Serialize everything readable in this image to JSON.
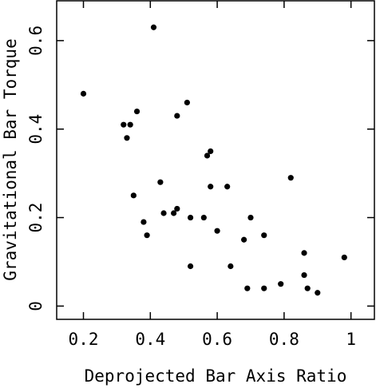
{
  "chart_data": {
    "type": "scatter",
    "title": "",
    "xlabel": "Deprojected Bar Axis Ratio",
    "ylabel": "Gravitational Bar Torque",
    "xlim": [
      0.12,
      1.07
    ],
    "ylim": [
      -0.03,
      0.69
    ],
    "x_ticks": [
      0.2,
      0.4,
      0.6,
      0.8,
      1.0
    ],
    "x_tick_labels": [
      "0.2",
      "0.4",
      "0.6",
      "0.8",
      "1"
    ],
    "y_ticks": [
      0,
      0.2,
      0.4,
      0.6
    ],
    "y_tick_labels": [
      "0",
      "0.2",
      "0.4",
      "0.6"
    ],
    "grid": false,
    "marker_color": "#000000",
    "points": [
      {
        "x": 0.2,
        "y": 0.48
      },
      {
        "x": 0.41,
        "y": 0.63
      },
      {
        "x": 0.32,
        "y": 0.41
      },
      {
        "x": 0.34,
        "y": 0.41
      },
      {
        "x": 0.33,
        "y": 0.38
      },
      {
        "x": 0.36,
        "y": 0.44
      },
      {
        "x": 0.51,
        "y": 0.46
      },
      {
        "x": 0.48,
        "y": 0.43
      },
      {
        "x": 0.57,
        "y": 0.34
      },
      {
        "x": 0.58,
        "y": 0.35
      },
      {
        "x": 0.82,
        "y": 0.29
      },
      {
        "x": 0.43,
        "y": 0.28
      },
      {
        "x": 0.58,
        "y": 0.27
      },
      {
        "x": 0.63,
        "y": 0.27
      },
      {
        "x": 0.35,
        "y": 0.25
      },
      {
        "x": 0.48,
        "y": 0.22
      },
      {
        "x": 0.44,
        "y": 0.21
      },
      {
        "x": 0.47,
        "y": 0.21
      },
      {
        "x": 0.52,
        "y": 0.2
      },
      {
        "x": 0.56,
        "y": 0.2
      },
      {
        "x": 0.7,
        "y": 0.2
      },
      {
        "x": 0.38,
        "y": 0.19
      },
      {
        "x": 0.6,
        "y": 0.17
      },
      {
        "x": 0.39,
        "y": 0.16
      },
      {
        "x": 0.74,
        "y": 0.16
      },
      {
        "x": 0.68,
        "y": 0.15
      },
      {
        "x": 0.86,
        "y": 0.12
      },
      {
        "x": 0.98,
        "y": 0.11
      },
      {
        "x": 0.52,
        "y": 0.09
      },
      {
        "x": 0.64,
        "y": 0.09
      },
      {
        "x": 0.86,
        "y": 0.07
      },
      {
        "x": 0.79,
        "y": 0.05
      },
      {
        "x": 0.69,
        "y": 0.04
      },
      {
        "x": 0.74,
        "y": 0.04
      },
      {
        "x": 0.87,
        "y": 0.04
      },
      {
        "x": 0.9,
        "y": 0.03
      }
    ]
  }
}
